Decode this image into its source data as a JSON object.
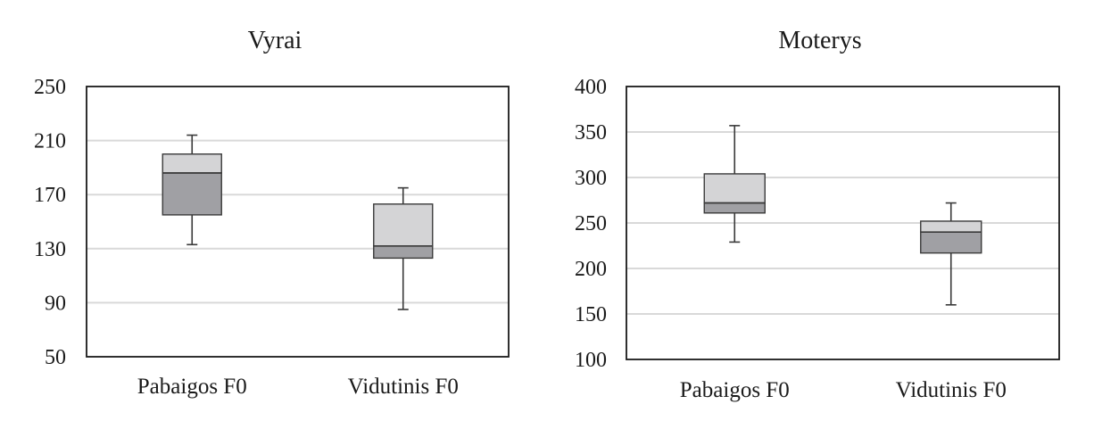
{
  "chart_data": [
    {
      "type": "box",
      "title": "Vyrai",
      "categories": [
        "Pabaigos F0",
        "Vidutinis F0"
      ],
      "ylim": [
        50,
        250
      ],
      "yticks": [
        50,
        90,
        130,
        170,
        210,
        250
      ],
      "grid": true,
      "boxes": [
        {
          "min": 133,
          "q1": 155,
          "median": 186,
          "q3": 200,
          "max": 214
        },
        {
          "min": 85,
          "q1": 123,
          "median": 132,
          "q3": 163,
          "max": 175
        }
      ],
      "colors": {
        "upper_box": "#d4d4d6",
        "lower_box": "#a0a0a4",
        "outline": "#3a3a3a",
        "grid": "#d9d9d9"
      }
    },
    {
      "type": "box",
      "title": "Moterys",
      "categories": [
        "Pabaigos F0",
        "Vidutinis F0"
      ],
      "ylim": [
        100,
        400
      ],
      "yticks": [
        100,
        150,
        200,
        250,
        300,
        350,
        400
      ],
      "grid": true,
      "boxes": [
        {
          "min": 229,
          "q1": 261,
          "median": 272,
          "q3": 304,
          "max": 357
        },
        {
          "min": 160,
          "q1": 217,
          "median": 240,
          "q3": 252,
          "max": 272
        }
      ],
      "colors": {
        "upper_box": "#d4d4d6",
        "lower_box": "#a0a0a4",
        "outline": "#3a3a3a",
        "grid": "#d9d9d9"
      }
    }
  ]
}
